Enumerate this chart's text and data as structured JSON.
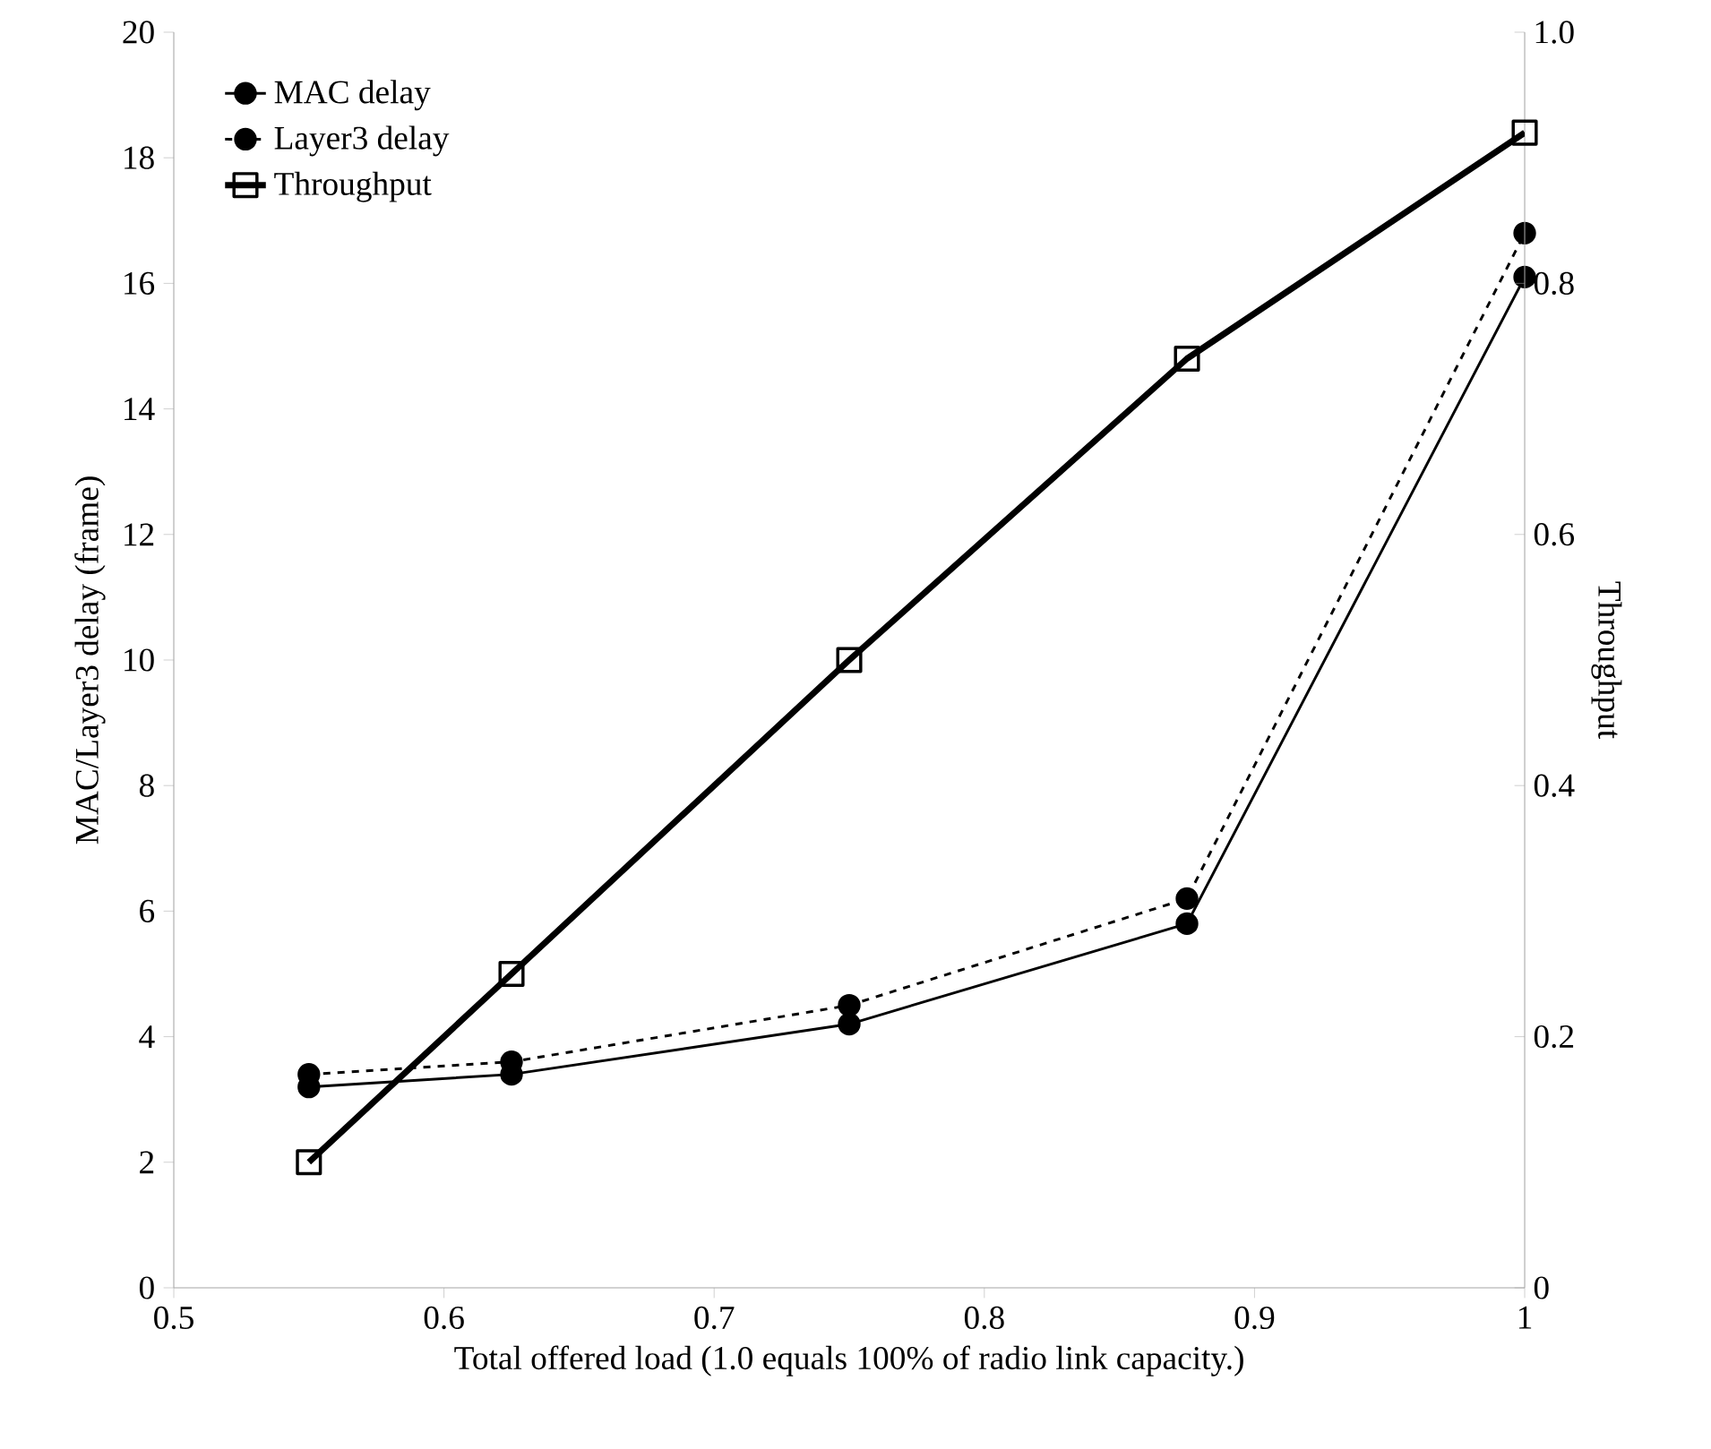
{
  "chart_data": {
    "type": "line",
    "xlabel": "Total offered load (1.0 equals 100% of radio link capacity.)",
    "ylabel": "MAC/Layer3 delay (frame)",
    "y2label": "Throughput",
    "x": [
      0.55,
      0.625,
      0.75,
      0.875,
      1.0
    ],
    "series": [
      {
        "name": "MAC delay",
        "color": "#000000",
        "marker": "circle",
        "line_style": "solid",
        "values": [
          3.2,
          3.4,
          4.2,
          5.8,
          16.1
        ]
      },
      {
        "name": "Layer3 delay",
        "color": "#000000",
        "marker": "circle",
        "line_style": "dashed",
        "values": [
          3.4,
          3.6,
          4.5,
          6.2,
          16.8
        ]
      },
      {
        "name": "Throughput",
        "color": "#000000",
        "marker": "square",
        "line_style": "solid",
        "axis": "y2",
        "values": [
          0.1,
          0.25,
          0.5,
          0.74,
          0.92
        ]
      }
    ],
    "xlim": [
      0.5,
      1.0
    ],
    "xticks": [
      0.5,
      0.6,
      0.7,
      0.8,
      0.9,
      {
        "value": 1.0,
        "label": "1"
      }
    ],
    "ylim": [
      0,
      20
    ],
    "yticks": [
      0,
      2,
      4,
      6,
      8,
      10,
      12,
      14,
      16,
      18,
      20
    ],
    "y2lim": [
      0,
      1.0
    ],
    "y2ticks": [
      0,
      0.2,
      0.4,
      0.6,
      0.8,
      {
        "value": 1.0,
        "label": "1.0"
      }
    ],
    "grid": false,
    "legend": "top left"
  }
}
